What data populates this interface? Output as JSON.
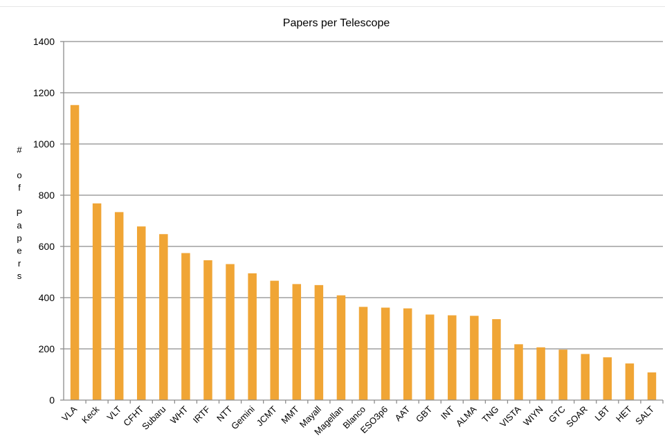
{
  "chart_data": {
    "type": "bar",
    "title": "Papers per Telescope",
    "xlabel": "",
    "ylabel": "# of Papers",
    "ylim": [
      0,
      1400
    ],
    "yticks": [
      0,
      200,
      400,
      600,
      800,
      1000,
      1200,
      1400
    ],
    "grid": true,
    "legend": "none",
    "bar_color": "#F0A535",
    "categories": [
      "VLA",
      "Keck",
      "VLT",
      "CFHT",
      "Subaru",
      "WHT",
      "IRTF",
      "NTT",
      "Gemini",
      "JCMT",
      "MMT",
      "Mayall",
      "Magellan",
      "Blanco",
      "ESO3p6",
      "AAT",
      "GBT",
      "INT",
      "ALMA",
      "TNG",
      "VISTA",
      "WIYN",
      "GTC",
      "SOAR",
      "LBT",
      "HET",
      "SALT"
    ],
    "values": [
      1152,
      768,
      734,
      678,
      648,
      574,
      546,
      531,
      495,
      466,
      453,
      449,
      409,
      364,
      361,
      358,
      334,
      331,
      329,
      316,
      218,
      206,
      197,
      180,
      167,
      143,
      108
    ]
  }
}
